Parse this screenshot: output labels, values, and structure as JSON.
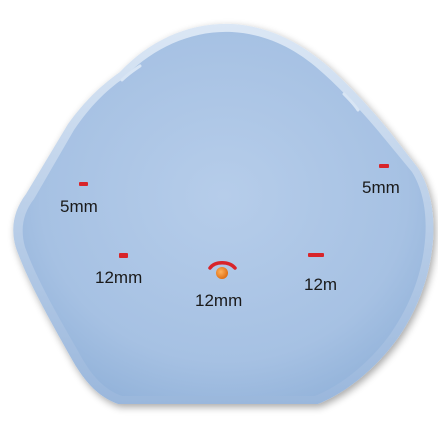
{
  "diagram": {
    "colors": {
      "abdomen_fill": "#a8c3e4",
      "abdomen_edge": "#c9daef",
      "abdomen_shadow": "#7f9fc6",
      "port_mark": "#d8242a",
      "camera_port_fill": "#f28c28"
    },
    "ports": [
      {
        "id": "left-upper",
        "label": "5mm",
        "marker": "dash"
      },
      {
        "id": "right-upper",
        "label": "5mm",
        "marker": "dash"
      },
      {
        "id": "left-lower",
        "label": "12mm",
        "marker": "dash"
      },
      {
        "id": "center",
        "label": "12mm",
        "marker": "umbilical-camera"
      },
      {
        "id": "right-lower",
        "label": "12m",
        "marker": "dash-wide"
      }
    ]
  }
}
